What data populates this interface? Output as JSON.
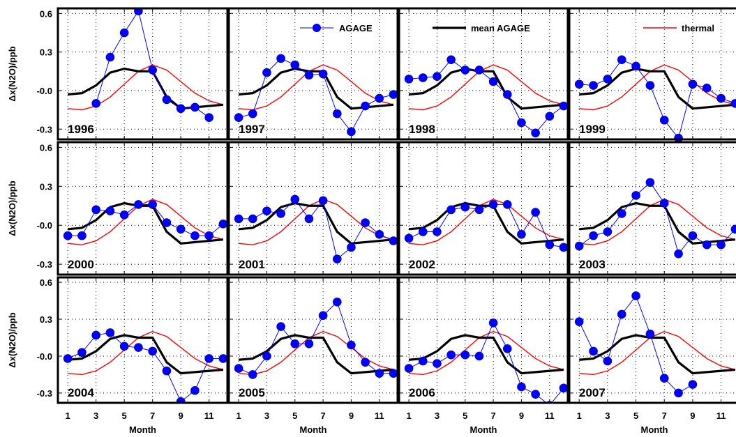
{
  "chart_data": {
    "type": "line",
    "ylabel": "Δx(N2O)/ppb",
    "xlabel": "Month",
    "x": [
      1,
      2,
      3,
      4,
      5,
      6,
      7,
      8,
      9,
      10,
      11,
      12
    ],
    "xticks": [
      1,
      3,
      5,
      7,
      9,
      11
    ],
    "yticks": [
      0.6,
      0.3,
      0.0,
      -0.3
    ],
    "ytick_labels": [
      "0.6",
      "0.3",
      "-0.0",
      "-0.3"
    ],
    "ylim": [
      -0.38,
      0.64
    ],
    "xlim": [
      0.3,
      12.3
    ],
    "grid": true,
    "layout": {
      "rows": 3,
      "cols": 4
    },
    "colors": {
      "agage": "#0000ff",
      "marker": "#0000ff",
      "mean": "#000000",
      "thermal": "#ff0000"
    },
    "legend": [
      {
        "key": "agage",
        "label": "AGAGE"
      },
      {
        "key": "mean",
        "label": "mean AGAGE"
      },
      {
        "key": "thermal",
        "label": "thermal"
      }
    ],
    "mean_agage": [
      -0.03,
      -0.02,
      0.04,
      0.14,
      0.17,
      0.15,
      0.15,
      -0.05,
      -0.14,
      -0.13,
      -0.12,
      -0.11
    ],
    "thermal": [
      -0.14,
      -0.15,
      -0.12,
      -0.05,
      0.05,
      0.15,
      0.2,
      0.16,
      0.07,
      -0.02,
      -0.08,
      -0.11
    ],
    "panels": [
      {
        "year": "1996",
        "agage": [
          null,
          null,
          -0.1,
          0.26,
          0.45,
          0.62,
          0.16,
          -0.07,
          -0.14,
          -0.13,
          -0.21,
          null
        ]
      },
      {
        "year": "1997",
        "agage": [
          -0.21,
          -0.18,
          0.14,
          0.25,
          0.2,
          0.12,
          0.13,
          -0.18,
          -0.32,
          -0.12,
          -0.06,
          -0.03
        ]
      },
      {
        "year": "1998",
        "agage": [
          0.09,
          0.1,
          0.11,
          0.24,
          0.16,
          0.16,
          0.07,
          -0.03,
          -0.25,
          -0.33,
          -0.2,
          -0.12
        ]
      },
      {
        "year": "1999",
        "agage": [
          0.05,
          0.04,
          0.09,
          0.24,
          0.19,
          0.04,
          -0.23,
          -0.37,
          0.05,
          0.02,
          -0.06,
          -0.1
        ]
      },
      {
        "year": "2000",
        "agage": [
          -0.08,
          -0.08,
          0.12,
          0.11,
          0.08,
          0.16,
          0.16,
          0.02,
          -0.03,
          -0.08,
          -0.08,
          0.01
        ]
      },
      {
        "year": "2001",
        "agage": [
          0.05,
          0.05,
          0.11,
          0.09,
          0.2,
          0.05,
          0.19,
          -0.26,
          -0.17,
          0.02,
          -0.07,
          -0.12
        ]
      },
      {
        "year": "2002",
        "agage": [
          -0.1,
          -0.05,
          -0.05,
          0.12,
          0.14,
          0.12,
          0.16,
          0.16,
          -0.07,
          0.1,
          -0.15,
          -0.17
        ]
      },
      {
        "year": "2003",
        "agage": [
          -0.16,
          -0.08,
          -0.05,
          0.09,
          0.23,
          0.33,
          0.17,
          -0.22,
          -0.08,
          -0.15,
          -0.15,
          -0.03
        ]
      },
      {
        "year": "2004",
        "agage": [
          -0.02,
          0.03,
          0.17,
          0.19,
          0.08,
          0.07,
          0.04,
          -0.12,
          -0.37,
          -0.28,
          -0.02,
          -0.02
        ]
      },
      {
        "year": "2005",
        "agage": [
          -0.1,
          -0.15,
          0.0,
          0.24,
          0.1,
          0.1,
          0.33,
          0.44,
          0.09,
          -0.05,
          -0.14,
          -0.14
        ]
      },
      {
        "year": "2006",
        "agage": [
          -0.1,
          -0.04,
          -0.06,
          0.01,
          0.01,
          0.0,
          0.27,
          0.06,
          -0.25,
          -0.31,
          -0.4,
          -0.26
        ]
      },
      {
        "year": "2007",
        "agage": [
          0.28,
          0.04,
          -0.04,
          0.34,
          0.49,
          0.18,
          -0.18,
          -0.3,
          -0.23,
          null,
          null,
          null
        ]
      }
    ]
  }
}
